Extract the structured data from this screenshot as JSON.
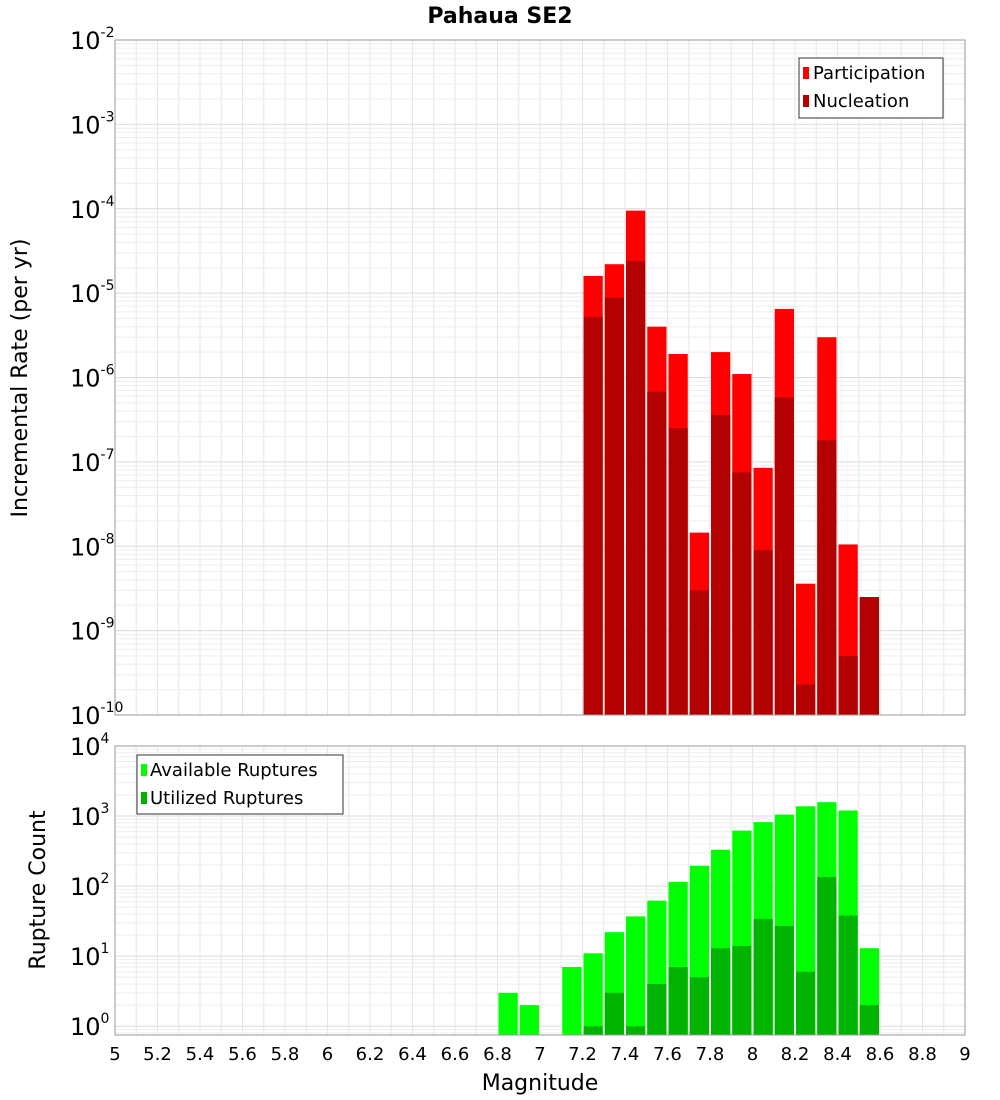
{
  "title": "Pahaua SE2",
  "xlabel": "Magnitude",
  "colors": {
    "participation": "#ff0000",
    "nucleation": "#b30000",
    "available": "#00ff00",
    "utilized": "#00b300",
    "grid": "#e6e6e6",
    "frame": "#999999"
  },
  "chart_data": [
    {
      "type": "bar",
      "ylabel": "Incremental Rate (per yr)",
      "yscale": "log",
      "xlim": [
        5,
        9
      ],
      "ylim": [
        1e-10,
        0.01
      ],
      "y_ticks": [
        {
          "base": "10",
          "exp": "-2"
        },
        {
          "base": "10",
          "exp": "-3"
        },
        {
          "base": "10",
          "exp": "-4"
        },
        {
          "base": "10",
          "exp": "-5"
        },
        {
          "base": "10",
          "exp": "-6"
        },
        {
          "base": "10",
          "exp": "-7"
        },
        {
          "base": "10",
          "exp": "-8"
        },
        {
          "base": "10",
          "exp": "-9"
        },
        {
          "base": "10",
          "exp": "-10"
        }
      ],
      "legend": {
        "position": "top-right",
        "items": [
          "Participation",
          "Nucleation"
        ]
      },
      "x": [
        7.25,
        7.35,
        7.45,
        7.55,
        7.65,
        7.75,
        7.85,
        7.95,
        8.05,
        8.15,
        8.25,
        8.35,
        8.45,
        8.55
      ],
      "series": [
        {
          "name": "Participation",
          "values": [
            1.6e-05,
            2.2e-05,
            9.5e-05,
            4e-06,
            1.9e-06,
            1.45e-08,
            2e-06,
            1.1e-06,
            8.5e-08,
            6.5e-06,
            3.6e-09,
            3e-06,
            1.05e-08,
            2.5e-09
          ]
        },
        {
          "name": "Nucleation",
          "values": [
            5.2e-06,
            8.8e-06,
            2.4e-05,
            6.8e-07,
            2.5e-07,
            3e-09,
            3.6e-07,
            7.5e-08,
            9e-09,
            5.8e-07,
            2.3e-10,
            1.8e-07,
            5e-10,
            2.5e-09
          ]
        }
      ]
    },
    {
      "type": "bar",
      "ylabel": "Rupture Count",
      "yscale": "log",
      "xlim": [
        5,
        9
      ],
      "ylim": [
        0.75,
        10000
      ],
      "y_ticks": [
        {
          "base": "10",
          "exp": "4"
        },
        {
          "base": "10",
          "exp": "3"
        },
        {
          "base": "10",
          "exp": "2"
        },
        {
          "base": "10",
          "exp": "1"
        },
        {
          "base": "10",
          "exp": "0"
        }
      ],
      "x_ticks": [
        "5",
        "5.2",
        "5.4",
        "5.6",
        "5.8",
        "6",
        "6.2",
        "6.4",
        "6.6",
        "6.8",
        "7",
        "7.2",
        "7.4",
        "7.6",
        "7.8",
        "8",
        "8.2",
        "8.4",
        "8.6",
        "8.8",
        "9"
      ],
      "legend": {
        "position": "top-left",
        "items": [
          "Available Ruptures",
          "Utilized Ruptures"
        ]
      },
      "x": [
        6.85,
        6.95,
        7.15,
        7.25,
        7.35,
        7.45,
        7.55,
        7.65,
        7.75,
        7.85,
        7.95,
        8.05,
        8.15,
        8.25,
        8.35,
        8.45,
        8.55
      ],
      "series": [
        {
          "name": "Available Ruptures",
          "values": [
            3,
            2,
            7,
            11,
            22,
            37,
            62,
            115,
            195,
            330,
            620,
            820,
            1050,
            1380,
            1580,
            1200,
            13
          ]
        },
        {
          "name": "Utilized Ruptures",
          "values": [
            null,
            null,
            null,
            1,
            3,
            1,
            4,
            7,
            5,
            13,
            14,
            34,
            27,
            6,
            135,
            38,
            2
          ]
        }
      ]
    }
  ]
}
